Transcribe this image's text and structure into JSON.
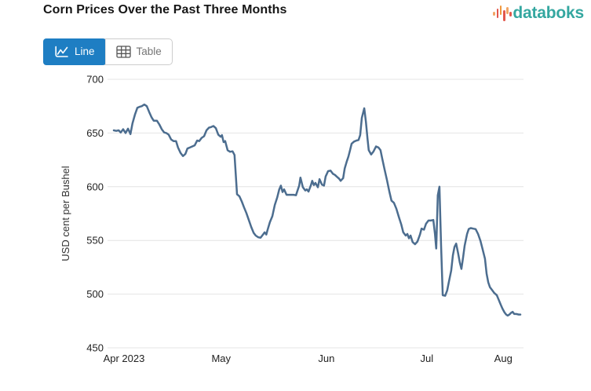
{
  "header": {
    "title": "Corn Prices Over the Past Three Months",
    "brand_name": "databoks"
  },
  "toolbar": {
    "line_label": "Line",
    "table_label": "Table"
  },
  "colors": {
    "accent_blue_button": "#1e7ec3",
    "line_series": "#4c6d8f",
    "brand_teal": "#34a7a0",
    "logo_orange": "#f0993f",
    "logo_red": "#e2574c",
    "gridline": "#e4e4e4",
    "axis_text": "#212121"
  },
  "chart_data": {
    "type": "line",
    "title": "Corn Prices Over the Past Three Months",
    "xlabel": "",
    "ylabel": "USD cent per Bushel",
    "ylim": [
      450,
      700
    ],
    "yticks": [
      450,
      500,
      550,
      600,
      650,
      700
    ],
    "grid": "horizontal",
    "legend": "none",
    "xticks": [
      {
        "label": "Apr 2023",
        "pos": 0.025
      },
      {
        "label": "May",
        "pos": 0.264
      },
      {
        "label": "Jun",
        "pos": 0.523
      },
      {
        "label": "Jul",
        "pos": 0.77
      },
      {
        "label": "Aug",
        "pos": 0.958
      }
    ],
    "series": [
      {
        "name": "Corn price",
        "units": "USD cent per Bushel",
        "points": [
          [
            0.0,
            652.5
          ],
          [
            0.006,
            652.0
          ],
          [
            0.012,
            652.5
          ],
          [
            0.017,
            650.5
          ],
          [
            0.023,
            653.5
          ],
          [
            0.029,
            650.0
          ],
          [
            0.035,
            654.0
          ],
          [
            0.041,
            649.0
          ],
          [
            0.046,
            659.0
          ],
          [
            0.052,
            667.0
          ],
          [
            0.058,
            673.5
          ],
          [
            0.064,
            674.5
          ],
          [
            0.069,
            675.0
          ],
          [
            0.075,
            676.5
          ],
          [
            0.081,
            675.0
          ],
          [
            0.087,
            669.5
          ],
          [
            0.093,
            664.5
          ],
          [
            0.098,
            661.5
          ],
          [
            0.106,
            661.5
          ],
          [
            0.112,
            658.0
          ],
          [
            0.118,
            653.5
          ],
          [
            0.124,
            650.5
          ],
          [
            0.129,
            650.0
          ],
          [
            0.135,
            648.5
          ],
          [
            0.141,
            644.0
          ],
          [
            0.147,
            642.5
          ],
          [
            0.153,
            642.5
          ],
          [
            0.158,
            636.5
          ],
          [
            0.164,
            631.5
          ],
          [
            0.17,
            628.5
          ],
          [
            0.176,
            630.5
          ],
          [
            0.181,
            635.5
          ],
          [
            0.187,
            636.5
          ],
          [
            0.193,
            637.5
          ],
          [
            0.199,
            638.5
          ],
          [
            0.205,
            643.0
          ],
          [
            0.21,
            642.5
          ],
          [
            0.216,
            645.5
          ],
          [
            0.222,
            647.0
          ],
          [
            0.228,
            652.5
          ],
          [
            0.234,
            655.0
          ],
          [
            0.239,
            655.5
          ],
          [
            0.245,
            656.5
          ],
          [
            0.251,
            654.5
          ],
          [
            0.257,
            648.5
          ],
          [
            0.263,
            646.5
          ],
          [
            0.266,
            648.0
          ],
          [
            0.27,
            641.5
          ],
          [
            0.274,
            642.5
          ],
          [
            0.28,
            634.0
          ],
          [
            0.286,
            632.5
          ],
          [
            0.292,
            633.0
          ],
          [
            0.297,
            629.5
          ],
          [
            0.303,
            593.0
          ],
          [
            0.309,
            591.0
          ],
          [
            0.315,
            586.0
          ],
          [
            0.32,
            581.0
          ],
          [
            0.326,
            575.5
          ],
          [
            0.332,
            569.0
          ],
          [
            0.338,
            562.5
          ],
          [
            0.344,
            557.0
          ],
          [
            0.349,
            554.5
          ],
          [
            0.355,
            553.0
          ],
          [
            0.361,
            552.5
          ],
          [
            0.367,
            555.5
          ],
          [
            0.371,
            557.5
          ],
          [
            0.375,
            555.5
          ],
          [
            0.378,
            559.5
          ],
          [
            0.384,
            567.0
          ],
          [
            0.39,
            572.5
          ],
          [
            0.396,
            583.0
          ],
          [
            0.402,
            590.0
          ],
          [
            0.407,
            597.5
          ],
          [
            0.411,
            601.0
          ],
          [
            0.415,
            595.0
          ],
          [
            0.419,
            597.5
          ],
          [
            0.425,
            592.5
          ],
          [
            0.431,
            592.5
          ],
          [
            0.436,
            592.5
          ],
          [
            0.442,
            592.5
          ],
          [
            0.448,
            592.0
          ],
          [
            0.452,
            596.5
          ],
          [
            0.456,
            601.0
          ],
          [
            0.459,
            608.5
          ],
          [
            0.465,
            599.5
          ],
          [
            0.471,
            596.5
          ],
          [
            0.475,
            597.5
          ],
          [
            0.479,
            595.5
          ],
          [
            0.485,
            601.5
          ],
          [
            0.488,
            605.5
          ],
          [
            0.492,
            601.5
          ],
          [
            0.496,
            603.5
          ],
          [
            0.502,
            599.5
          ],
          [
            0.506,
            607.0
          ],
          [
            0.512,
            602.0
          ],
          [
            0.517,
            601.0
          ],
          [
            0.521,
            609.5
          ],
          [
            0.527,
            614.5
          ],
          [
            0.533,
            615.0
          ],
          [
            0.539,
            612.0
          ],
          [
            0.544,
            611.0
          ],
          [
            0.548,
            609.5
          ],
          [
            0.554,
            607.5
          ],
          [
            0.558,
            605.5
          ],
          [
            0.564,
            608.0
          ],
          [
            0.568,
            617.0
          ],
          [
            0.573,
            623.5
          ],
          [
            0.577,
            628.0
          ],
          [
            0.581,
            634.0
          ],
          [
            0.585,
            640.0
          ],
          [
            0.591,
            642.0
          ],
          [
            0.597,
            643.0
          ],
          [
            0.602,
            643.5
          ],
          [
            0.606,
            648.0
          ],
          [
            0.61,
            664.0
          ],
          [
            0.616,
            673.0
          ],
          [
            0.62,
            660.5
          ],
          [
            0.624,
            645.0
          ],
          [
            0.627,
            634.0
          ],
          [
            0.633,
            630.0
          ],
          [
            0.639,
            633.0
          ],
          [
            0.645,
            637.5
          ],
          [
            0.651,
            636.5
          ],
          [
            0.656,
            634.0
          ],
          [
            0.66,
            626.5
          ],
          [
            0.666,
            616.0
          ],
          [
            0.672,
            606.0
          ],
          [
            0.678,
            595.0
          ],
          [
            0.683,
            587.0
          ],
          [
            0.689,
            585.0
          ],
          [
            0.695,
            579.5
          ],
          [
            0.701,
            572.0
          ],
          [
            0.707,
            565.0
          ],
          [
            0.712,
            557.5
          ],
          [
            0.718,
            554.5
          ],
          [
            0.722,
            556.0
          ],
          [
            0.726,
            552.0
          ],
          [
            0.73,
            554.5
          ],
          [
            0.735,
            548.5
          ],
          [
            0.741,
            546.5
          ],
          [
            0.747,
            549.0
          ],
          [
            0.753,
            555.5
          ],
          [
            0.757,
            561.0
          ],
          [
            0.763,
            560.0
          ],
          [
            0.768,
            565.5
          ],
          [
            0.774,
            568.5
          ],
          [
            0.78,
            568.5
          ],
          [
            0.786,
            569.0
          ],
          [
            0.79,
            556.0
          ],
          [
            0.793,
            542.5
          ],
          [
            0.797,
            592.0
          ],
          [
            0.801,
            600.0
          ],
          [
            0.805,
            545.0
          ],
          [
            0.809,
            499.0
          ],
          [
            0.815,
            498.5
          ],
          [
            0.82,
            503.5
          ],
          [
            0.824,
            511.0
          ],
          [
            0.83,
            522.0
          ],
          [
            0.834,
            536.0
          ],
          [
            0.838,
            544.0
          ],
          [
            0.842,
            547.0
          ],
          [
            0.847,
            538.0
          ],
          [
            0.851,
            529.5
          ],
          [
            0.855,
            523.5
          ],
          [
            0.859,
            534.0
          ],
          [
            0.863,
            545.0
          ],
          [
            0.869,
            556.0
          ],
          [
            0.873,
            560.5
          ],
          [
            0.878,
            561.5
          ],
          [
            0.884,
            561.0
          ],
          [
            0.89,
            560.5
          ],
          [
            0.896,
            556.0
          ],
          [
            0.902,
            549.5
          ],
          [
            0.907,
            542.0
          ],
          [
            0.913,
            533.0
          ],
          [
            0.917,
            519.0
          ],
          [
            0.921,
            511.0
          ],
          [
            0.925,
            506.5
          ],
          [
            0.929,
            504.5
          ],
          [
            0.932,
            503.0
          ],
          [
            0.936,
            501.0
          ],
          [
            0.942,
            499.0
          ],
          [
            0.946,
            495.5
          ],
          [
            0.952,
            490.0
          ],
          [
            0.956,
            486.5
          ],
          [
            0.961,
            483.0
          ],
          [
            0.965,
            481.0
          ],
          [
            0.969,
            480.0
          ],
          [
            0.973,
            481.0
          ],
          [
            0.977,
            482.5
          ],
          [
            0.981,
            483.5
          ],
          [
            0.985,
            481.5
          ],
          [
            0.99,
            481.5
          ],
          [
            0.996,
            481.0
          ],
          [
            1.0,
            481.0
          ]
        ]
      }
    ]
  }
}
